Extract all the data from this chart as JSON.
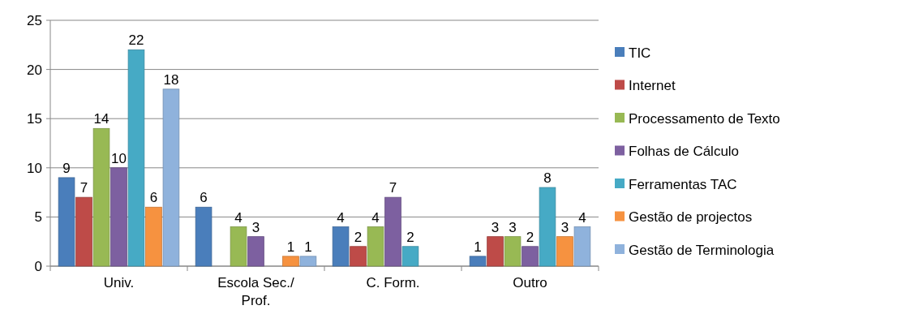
{
  "chart_data": {
    "type": "bar",
    "categories": [
      "Univ.",
      "Escola Sec./ Prof.",
      "C. Form.",
      "Outro"
    ],
    "series": [
      {
        "name": "TIC",
        "color": "#4a7ebb",
        "values": [
          9,
          6,
          4,
          1
        ]
      },
      {
        "name": "Internet",
        "color": "#be4b48",
        "values": [
          7,
          null,
          2,
          3
        ]
      },
      {
        "name": "Processamento de Texto",
        "color": "#98b954",
        "values": [
          14,
          4,
          4,
          3
        ]
      },
      {
        "name": "Folhas de Cálculo",
        "color": "#7d60a0",
        "values": [
          10,
          3,
          7,
          2
        ]
      },
      {
        "name": "Ferramentas TAC",
        "color": "#46aac5",
        "values": [
          22,
          null,
          2,
          8
        ]
      },
      {
        "name": "Gestão de projectos",
        "color": "#f69240",
        "values": [
          6,
          1,
          null,
          3
        ]
      },
      {
        "name": "Gestão de Terminologia",
        "color": "#8fb2dc",
        "values": [
          18,
          1,
          null,
          4
        ]
      }
    ],
    "ylim": [
      0,
      25
    ],
    "yticks": [
      0,
      5,
      10,
      15,
      20,
      25
    ],
    "grid": "y",
    "legend": "right",
    "data_labels": true
  }
}
